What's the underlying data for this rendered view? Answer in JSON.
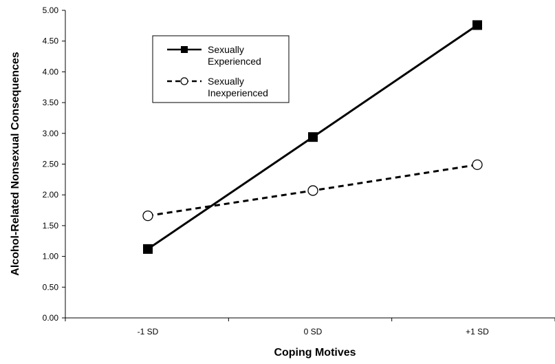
{
  "chart_data": {
    "type": "line",
    "title": "",
    "xlabel": "Coping Motives",
    "ylabel": "Alcohol-Related Nonsexual Consequences",
    "categories": [
      "-1 SD",
      "0 SD",
      "+1 SD"
    ],
    "ylim": [
      0,
      5
    ],
    "yticks": [
      "0.00",
      "0.50",
      "1.00",
      "1.50",
      "2.00",
      "2.50",
      "3.00",
      "3.50",
      "4.00",
      "4.50",
      "5.00"
    ],
    "grid": false,
    "legend_position": "top-left",
    "series": [
      {
        "name_lines": [
          "Sexually",
          "Experienced"
        ],
        "values": [
          1.12,
          2.94,
          4.76
        ],
        "line_style": "solid",
        "marker": "filled-square",
        "color": "#000000"
      },
      {
        "name_lines": [
          "Sexually",
          "Inexperienced"
        ],
        "values": [
          1.66,
          2.07,
          2.49
        ],
        "line_style": "dashed",
        "marker": "open-circle",
        "color": "#000000"
      }
    ]
  }
}
